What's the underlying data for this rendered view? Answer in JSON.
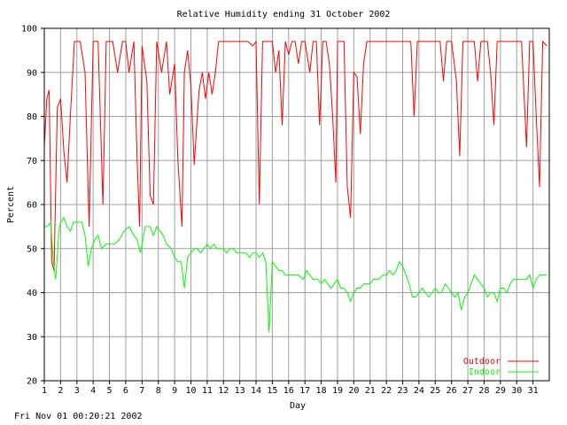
{
  "chart_data": {
    "type": "line",
    "title": "Relative Humidity ending 31 October 2002",
    "xlabel": "Day",
    "ylabel": "Percent",
    "xlim": [
      1,
      32
    ],
    "ylim": [
      20,
      100
    ],
    "x_ticks": [
      "1",
      "2",
      "3",
      "4",
      "5",
      "6",
      "7",
      "8",
      "9",
      "10",
      "11",
      "12",
      "13",
      "14",
      "15",
      "16",
      "17",
      "18",
      "19",
      "20",
      "21",
      "22",
      "23",
      "24",
      "25",
      "26",
      "27",
      "28",
      "29",
      "30",
      "31"
    ],
    "y_ticks": [
      "20",
      "30",
      "40",
      "50",
      "60",
      "70",
      "80",
      "90",
      "100"
    ],
    "grid": true,
    "legend_position": "bottom-right",
    "series": [
      {
        "name": "Outdoor",
        "color": "#ff0000",
        "points": [
          [
            1.0,
            73
          ],
          [
            1.15,
            84
          ],
          [
            1.3,
            86
          ],
          [
            1.45,
            47
          ],
          [
            1.6,
            45
          ],
          [
            1.8,
            82
          ],
          [
            2.0,
            84
          ],
          [
            2.2,
            72
          ],
          [
            2.4,
            65
          ],
          [
            2.6,
            80
          ],
          [
            2.85,
            97
          ],
          [
            3.2,
            97
          ],
          [
            3.5,
            90
          ],
          [
            3.75,
            55
          ],
          [
            4.0,
            97
          ],
          [
            4.3,
            97
          ],
          [
            4.6,
            60
          ],
          [
            4.8,
            97
          ],
          [
            5.2,
            97
          ],
          [
            5.5,
            90
          ],
          [
            5.8,
            97
          ],
          [
            6.0,
            97
          ],
          [
            6.2,
            90
          ],
          [
            6.5,
            97
          ],
          [
            6.7,
            70
          ],
          [
            6.85,
            55
          ],
          [
            7.0,
            96
          ],
          [
            7.3,
            88
          ],
          [
            7.5,
            62
          ],
          [
            7.7,
            60
          ],
          [
            7.9,
            97
          ],
          [
            8.2,
            90
          ],
          [
            8.5,
            97
          ],
          [
            8.7,
            85
          ],
          [
            9.0,
            92
          ],
          [
            9.2,
            70
          ],
          [
            9.45,
            55
          ],
          [
            9.6,
            90
          ],
          [
            9.8,
            95
          ],
          [
            10.0,
            87
          ],
          [
            10.2,
            69
          ],
          [
            10.5,
            86
          ],
          [
            10.7,
            90
          ],
          [
            10.9,
            84
          ],
          [
            11.1,
            90
          ],
          [
            11.3,
            85
          ],
          [
            11.5,
            90
          ],
          [
            11.7,
            97
          ],
          [
            12.0,
            97
          ],
          [
            12.5,
            97
          ],
          [
            13.0,
            97
          ],
          [
            13.5,
            97
          ],
          [
            13.8,
            96
          ],
          [
            14.0,
            97
          ],
          [
            14.2,
            60
          ],
          [
            14.4,
            97
          ],
          [
            14.6,
            97
          ],
          [
            14.8,
            97
          ],
          [
            15.0,
            97
          ],
          [
            15.2,
            90
          ],
          [
            15.4,
            95
          ],
          [
            15.6,
            78
          ],
          [
            15.8,
            97
          ],
          [
            16.0,
            94
          ],
          [
            16.2,
            97
          ],
          [
            16.4,
            97
          ],
          [
            16.6,
            92
          ],
          [
            16.8,
            97
          ],
          [
            17.0,
            97
          ],
          [
            17.3,
            90
          ],
          [
            17.5,
            97
          ],
          [
            17.7,
            97
          ],
          [
            17.9,
            78
          ],
          [
            18.1,
            97
          ],
          [
            18.3,
            97
          ],
          [
            18.5,
            92
          ],
          [
            18.7,
            80
          ],
          [
            18.9,
            65
          ],
          [
            19.0,
            97
          ],
          [
            19.2,
            97
          ],
          [
            19.4,
            97
          ],
          [
            19.6,
            64
          ],
          [
            19.8,
            57
          ],
          [
            20.0,
            90
          ],
          [
            20.2,
            89
          ],
          [
            20.4,
            76
          ],
          [
            20.6,
            92
          ],
          [
            20.8,
            97
          ],
          [
            21.0,
            97
          ],
          [
            21.5,
            97
          ],
          [
            22.0,
            97
          ],
          [
            22.5,
            97
          ],
          [
            23.0,
            97
          ],
          [
            23.3,
            97
          ],
          [
            23.5,
            97
          ],
          [
            23.7,
            80
          ],
          [
            23.9,
            97
          ],
          [
            24.2,
            97
          ],
          [
            24.6,
            97
          ],
          [
            25.0,
            97
          ],
          [
            25.3,
            97
          ],
          [
            25.5,
            88
          ],
          [
            25.7,
            97
          ],
          [
            26.0,
            97
          ],
          [
            26.3,
            88
          ],
          [
            26.5,
            71
          ],
          [
            26.7,
            97
          ],
          [
            27.0,
            97
          ],
          [
            27.2,
            97
          ],
          [
            27.4,
            97
          ],
          [
            27.6,
            88
          ],
          [
            27.8,
            97
          ],
          [
            28.0,
            97
          ],
          [
            28.2,
            97
          ],
          [
            28.4,
            90
          ],
          [
            28.6,
            78
          ],
          [
            28.8,
            97
          ],
          [
            29.0,
            97
          ],
          [
            29.3,
            97
          ],
          [
            29.5,
            97
          ],
          [
            29.8,
            97
          ],
          [
            30.0,
            97
          ],
          [
            30.3,
            97
          ],
          [
            30.6,
            73
          ],
          [
            30.8,
            97
          ],
          [
            31.0,
            97
          ],
          [
            31.2,
            80
          ],
          [
            31.4,
            64
          ],
          [
            31.6,
            97
          ],
          [
            31.85,
            96
          ]
        ]
      },
      {
        "name": "Indoor",
        "color": "#00ff00",
        "points": [
          [
            1.0,
            55
          ],
          [
            1.2,
            55
          ],
          [
            1.4,
            56
          ],
          [
            1.55,
            47
          ],
          [
            1.7,
            43
          ],
          [
            1.9,
            54
          ],
          [
            2.0,
            56
          ],
          [
            2.2,
            57
          ],
          [
            2.4,
            55
          ],
          [
            2.6,
            54
          ],
          [
            2.8,
            56
          ],
          [
            3.0,
            56
          ],
          [
            3.3,
            56
          ],
          [
            3.5,
            53
          ],
          [
            3.7,
            46
          ],
          [
            3.9,
            50
          ],
          [
            4.1,
            52
          ],
          [
            4.3,
            53
          ],
          [
            4.5,
            50
          ],
          [
            4.8,
            51
          ],
          [
            5.0,
            51
          ],
          [
            5.3,
            51
          ],
          [
            5.6,
            52
          ],
          [
            5.9,
            54
          ],
          [
            6.2,
            55
          ],
          [
            6.5,
            53
          ],
          [
            6.7,
            52
          ],
          [
            6.9,
            49
          ],
          [
            7.2,
            55
          ],
          [
            7.5,
            55
          ],
          [
            7.7,
            53
          ],
          [
            7.9,
            55
          ],
          [
            8.1,
            54
          ],
          [
            8.3,
            53
          ],
          [
            8.5,
            51
          ],
          [
            8.8,
            50
          ],
          [
            9.0,
            48
          ],
          [
            9.2,
            47
          ],
          [
            9.4,
            47
          ],
          [
            9.6,
            41
          ],
          [
            9.8,
            48
          ],
          [
            10.0,
            49
          ],
          [
            10.2,
            50
          ],
          [
            10.4,
            50
          ],
          [
            10.6,
            49
          ],
          [
            10.8,
            50
          ],
          [
            11.0,
            51
          ],
          [
            11.2,
            50
          ],
          [
            11.4,
            51
          ],
          [
            11.6,
            50
          ],
          [
            11.8,
            50
          ],
          [
            12.0,
            50
          ],
          [
            12.2,
            49
          ],
          [
            12.4,
            50
          ],
          [
            12.6,
            50
          ],
          [
            12.8,
            49
          ],
          [
            13.0,
            49
          ],
          [
            13.2,
            49
          ],
          [
            13.4,
            49
          ],
          [
            13.6,
            48
          ],
          [
            13.8,
            49
          ],
          [
            14.0,
            49
          ],
          [
            14.2,
            48
          ],
          [
            14.4,
            49
          ],
          [
            14.6,
            47
          ],
          [
            14.8,
            31
          ],
          [
            15.0,
            47
          ],
          [
            15.2,
            46
          ],
          [
            15.4,
            45
          ],
          [
            15.6,
            45
          ],
          [
            15.8,
            44
          ],
          [
            16.0,
            44
          ],
          [
            16.3,
            44
          ],
          [
            16.6,
            44
          ],
          [
            16.9,
            43
          ],
          [
            17.1,
            45
          ],
          [
            17.3,
            44
          ],
          [
            17.5,
            43
          ],
          [
            17.8,
            43
          ],
          [
            18.0,
            42
          ],
          [
            18.2,
            43
          ],
          [
            18.4,
            42
          ],
          [
            18.6,
            41
          ],
          [
            18.8,
            42
          ],
          [
            19.0,
            43
          ],
          [
            19.2,
            41
          ],
          [
            19.4,
            41
          ],
          [
            19.6,
            40
          ],
          [
            19.8,
            38
          ],
          [
            20.0,
            40
          ],
          [
            20.2,
            41
          ],
          [
            20.4,
            41
          ],
          [
            20.6,
            42
          ],
          [
            20.8,
            42
          ],
          [
            21.0,
            42
          ],
          [
            21.2,
            43
          ],
          [
            21.5,
            43
          ],
          [
            21.8,
            44
          ],
          [
            22.0,
            44
          ],
          [
            22.2,
            45
          ],
          [
            22.4,
            44
          ],
          [
            22.6,
            45
          ],
          [
            22.8,
            47
          ],
          [
            23.0,
            46
          ],
          [
            23.2,
            44
          ],
          [
            23.4,
            42
          ],
          [
            23.6,
            39
          ],
          [
            23.8,
            39
          ],
          [
            24.0,
            40
          ],
          [
            24.2,
            41
          ],
          [
            24.4,
            40
          ],
          [
            24.6,
            39
          ],
          [
            24.8,
            40
          ],
          [
            25.0,
            41
          ],
          [
            25.2,
            40
          ],
          [
            25.4,
            40
          ],
          [
            25.6,
            42
          ],
          [
            25.8,
            41
          ],
          [
            26.0,
            40
          ],
          [
            26.2,
            39
          ],
          [
            26.4,
            40
          ],
          [
            26.6,
            36
          ],
          [
            26.8,
            39
          ],
          [
            27.0,
            40
          ],
          [
            27.2,
            42
          ],
          [
            27.4,
            44
          ],
          [
            27.6,
            43
          ],
          [
            27.8,
            42
          ],
          [
            28.0,
            41
          ],
          [
            28.2,
            39
          ],
          [
            28.4,
            40
          ],
          [
            28.6,
            40
          ],
          [
            28.8,
            38
          ],
          [
            29.0,
            41
          ],
          [
            29.2,
            41
          ],
          [
            29.4,
            40
          ],
          [
            29.6,
            42
          ],
          [
            29.8,
            43
          ],
          [
            30.0,
            43
          ],
          [
            30.3,
            43
          ],
          [
            30.6,
            43
          ],
          [
            30.8,
            44
          ],
          [
            31.0,
            41
          ],
          [
            31.2,
            43
          ],
          [
            31.4,
            44
          ],
          [
            31.6,
            44
          ],
          [
            31.85,
            44
          ]
        ]
      }
    ],
    "legend": [
      {
        "name": "Outdoor",
        "color": "#ff0000"
      },
      {
        "name": "Indoor",
        "color": "#00ff00"
      }
    ]
  },
  "footer": {
    "timestamp": "Fri Nov 01 00:20:21 2002"
  }
}
